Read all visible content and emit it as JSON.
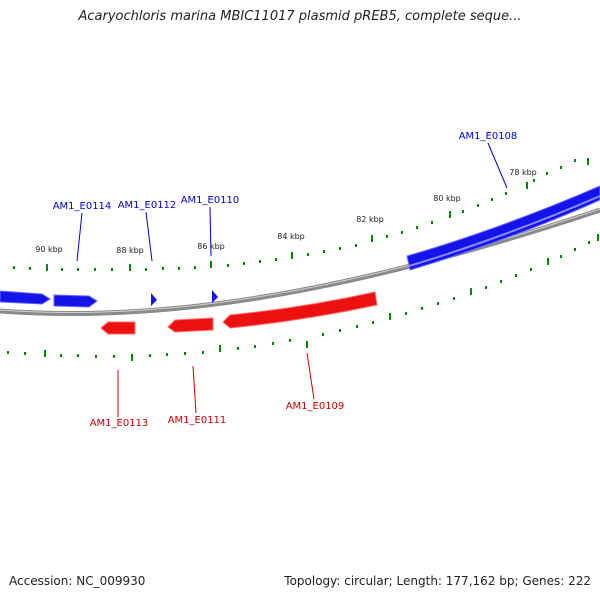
{
  "title": "Acaryochloris marina MBIC11017 plasmid pREB5, complete seque...",
  "footer": {
    "accession": "Accession: NC_009930",
    "topology": "Topology: circular; Length: 177,162 bp; Genes: 222"
  },
  "colors": {
    "forward_gene": "#0000ee",
    "reverse_gene": "#ee0000",
    "backbone": "#808080",
    "tick": "#008000",
    "label_text": "#222222"
  },
  "scale_labels": [
    "90 kbp",
    "88 kbp",
    "86 kbp",
    "84 kbp",
    "82 kbp",
    "80 kbp",
    "78 kbp"
  ],
  "forward_genes": [
    "AM1_E0114",
    "AM1_E0112",
    "AM1_E0110",
    "AM1_E0108"
  ],
  "reverse_genes": [
    "AM1_E0113",
    "AM1_E0111",
    "AM1_E0109"
  ]
}
